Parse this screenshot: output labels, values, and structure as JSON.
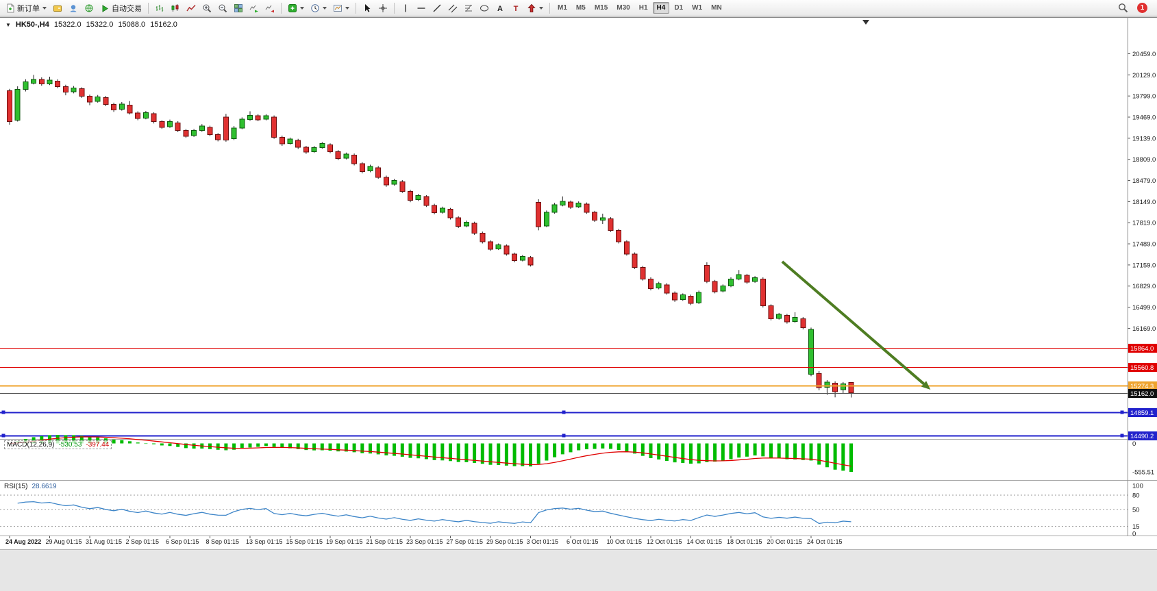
{
  "toolbar": {
    "new_order_label": "新订单",
    "auto_trading_label": "自动交易",
    "timeframes": [
      "M1",
      "M5",
      "M15",
      "M30",
      "H1",
      "H4",
      "D1",
      "W1",
      "MN"
    ],
    "active_timeframe": "H4",
    "notification_count": "1",
    "icons": [
      "new-order",
      "wallet",
      "headset",
      "globe",
      "auto-trading-play",
      "bar-chart",
      "candlestick-chart",
      "line-chart",
      "zoom-in",
      "zoom-out",
      "tile-windows",
      "auto-scroll",
      "chart-shift",
      "add-indicator",
      "periods-clock",
      "templates",
      "cursor",
      "crosshair",
      "vertical-line",
      "horizontal-line",
      "trendline",
      "equidistant-channel",
      "fibonacci",
      "ellipse",
      "text",
      "text-label",
      "arrows",
      "search",
      "notification"
    ]
  },
  "chart": {
    "symbol": "HK50-,H4",
    "ohlc": {
      "open": "15322.0",
      "high": "15322.0",
      "low": "15088.0",
      "close": "15162.0"
    }
  },
  "chart_data": {
    "type": "candlestick",
    "symbol": "HK50-",
    "timeframe": "H4",
    "ylim": [
      14440,
      21010
    ],
    "y_ticks": [
      20459,
      20129,
      19799,
      19469,
      19139,
      18809,
      18479,
      18149,
      17819,
      17489,
      17159,
      16829,
      16499,
      16169
    ],
    "x_labels": [
      "24 Aug 2022",
      "29 Aug 01:15",
      "31 Aug 01:15",
      "2 Sep 01:15",
      "6 Sep 01:15",
      "8 Sep 01:15",
      "13 Sep 01:15",
      "15 Sep 01:15",
      "19 Sep 01:15",
      "21 Sep 01:15",
      "23 Sep 01:15",
      "27 Sep 01:15",
      "29 Sep 01:15",
      "3 Oct 01:15",
      "6 Oct 01:15",
      "10 Oct 01:15",
      "12 Oct 01:15",
      "14 Oct 01:15",
      "18 Oct 01:15",
      "20 Oct 01:15",
      "24 Oct 01:15"
    ],
    "bars_per_label": 5,
    "candles": [
      [
        "r",
        19880,
        19400,
        19910,
        19350
      ],
      [
        "g",
        19900,
        19420,
        19950,
        19400
      ],
      [
        "g",
        20020,
        19900,
        20060,
        19870
      ],
      [
        "g",
        20060,
        20000,
        20129,
        19980
      ],
      [
        "r",
        20060,
        19990,
        20090,
        19960
      ],
      [
        "g",
        20045,
        19990,
        20100,
        19970
      ],
      [
        "r",
        20030,
        19945,
        20060,
        19920
      ],
      [
        "r",
        19945,
        19860,
        19975,
        19810
      ],
      [
        "g",
        19925,
        19865,
        19955,
        19840
      ],
      [
        "r",
        19915,
        19795,
        19935,
        19770
      ],
      [
        "r",
        19795,
        19705,
        19820,
        19655
      ],
      [
        "g",
        19785,
        19715,
        19815,
        19695
      ],
      [
        "r",
        19775,
        19665,
        19800,
        19640
      ],
      [
        "r",
        19665,
        19580,
        19695,
        19550
      ],
      [
        "g",
        19675,
        19590,
        19705,
        19570
      ],
      [
        "r",
        19655,
        19535,
        19720,
        19510
      ],
      [
        "r",
        19535,
        19448,
        19560,
        19420
      ],
      [
        "g",
        19538,
        19455,
        19565,
        19435
      ],
      [
        "r",
        19520,
        19398,
        19545,
        19370
      ],
      [
        "r",
        19398,
        19310,
        19420,
        19285
      ],
      [
        "g",
        19402,
        19320,
        19430,
        19300
      ],
      [
        "r",
        19380,
        19262,
        19405,
        19235
      ],
      [
        "r",
        19262,
        19172,
        19285,
        19145
      ],
      [
        "g",
        19258,
        19180,
        19285,
        19160
      ],
      [
        "g",
        19332,
        19258,
        19360,
        19240
      ],
      [
        "r",
        19310,
        19198,
        19335,
        19170
      ],
      [
        "r",
        19198,
        19118,
        19220,
        19090
      ],
      [
        "r",
        19470,
        19112,
        19520,
        19085
      ],
      [
        "g",
        19298,
        19130,
        19330,
        19110
      ],
      [
        "g",
        19438,
        19298,
        19465,
        19280
      ],
      [
        "g",
        19498,
        19430,
        19560,
        19410
      ],
      [
        "r",
        19490,
        19428,
        19515,
        19405
      ],
      [
        "g",
        19488,
        19436,
        19515,
        19418
      ],
      [
        "r",
        19470,
        19155,
        19495,
        19130
      ],
      [
        "r",
        19155,
        19050,
        19180,
        19020
      ],
      [
        "g",
        19125,
        19058,
        19150,
        19040
      ],
      [
        "r",
        19108,
        18998,
        19130,
        18970
      ],
      [
        "r",
        18998,
        18922,
        19020,
        18895
      ],
      [
        "g",
        18995,
        18930,
        19020,
        18910
      ],
      [
        "g",
        19055,
        18995,
        19080,
        18975
      ],
      [
        "r",
        19035,
        18930,
        19060,
        18905
      ],
      [
        "r",
        18930,
        18820,
        18955,
        18795
      ],
      [
        "g",
        18890,
        18828,
        18915,
        18808
      ],
      [
        "r",
        18875,
        18740,
        18900,
        18715
      ],
      [
        "r",
        18740,
        18620,
        18765,
        18590
      ],
      [
        "g",
        18700,
        18628,
        18725,
        18608
      ],
      [
        "r",
        18680,
        18530,
        18705,
        18505
      ],
      [
        "r",
        18530,
        18410,
        18555,
        18380
      ],
      [
        "g",
        18480,
        18418,
        18505,
        18398
      ],
      [
        "r",
        18460,
        18310,
        18485,
        18285
      ],
      [
        "r",
        18310,
        18170,
        18335,
        18140
      ],
      [
        "g",
        18245,
        18178,
        18270,
        18158
      ],
      [
        "r",
        18228,
        18090,
        18250,
        18065
      ],
      [
        "r",
        18090,
        17975,
        18115,
        17950
      ],
      [
        "g",
        18045,
        17982,
        18070,
        17962
      ],
      [
        "r",
        18028,
        17895,
        18050,
        17870
      ],
      [
        "r",
        17895,
        17760,
        17920,
        17735
      ],
      [
        "g",
        17828,
        17768,
        17852,
        17748
      ],
      [
        "r",
        17810,
        17655,
        17835,
        17630
      ],
      [
        "r",
        17655,
        17520,
        17680,
        17495
      ],
      [
        "r",
        17520,
        17405,
        17545,
        17380
      ],
      [
        "g",
        17472,
        17412,
        17495,
        17392
      ],
      [
        "r",
        17455,
        17330,
        17480,
        17305
      ],
      [
        "r",
        17330,
        17228,
        17352,
        17200
      ],
      [
        "g",
        17292,
        17235,
        17315,
        17215
      ],
      [
        "r",
        17275,
        17160,
        17298,
        17135
      ],
      [
        "r",
        18135,
        17755,
        18185,
        17700
      ],
      [
        "g",
        17980,
        17770,
        18010,
        17750
      ],
      [
        "g",
        18100,
        17980,
        18130,
        17960
      ],
      [
        "g",
        18152,
        18095,
        18230,
        18075
      ],
      [
        "r",
        18140,
        18060,
        18165,
        18035
      ],
      [
        "g",
        18128,
        18068,
        18152,
        18048
      ],
      [
        "r",
        18110,
        17982,
        18135,
        17958
      ],
      [
        "r",
        17982,
        17858,
        18005,
        17832
      ],
      [
        "g",
        17895,
        17860,
        17960,
        17800
      ],
      [
        "r",
        17880,
        17700,
        17905,
        17675
      ],
      [
        "r",
        17700,
        17520,
        17725,
        17495
      ],
      [
        "r",
        17520,
        17330,
        17545,
        17305
      ],
      [
        "r",
        17330,
        17120,
        17355,
        17095
      ],
      [
        "r",
        17120,
        16940,
        17145,
        16915
      ],
      [
        "r",
        16940,
        16790,
        16965,
        16762
      ],
      [
        "g",
        16870,
        16798,
        16895,
        16778
      ],
      [
        "r",
        16850,
        16720,
        16875,
        16695
      ],
      [
        "r",
        16720,
        16610,
        16745,
        16582
      ],
      [
        "g",
        16690,
        16618,
        16715,
        16598
      ],
      [
        "r",
        16670,
        16560,
        16695,
        16532
      ],
      [
        "g",
        16730,
        16568,
        16758,
        16548
      ],
      [
        "r",
        17150,
        16900,
        17200,
        16875
      ],
      [
        "r",
        16900,
        16740,
        16925,
        16715
      ],
      [
        "g",
        16830,
        16750,
        16855,
        16730
      ],
      [
        "g",
        16940,
        16830,
        16965,
        16812
      ],
      [
        "g",
        17010,
        16940,
        17080,
        16920
      ],
      [
        "r",
        16995,
        16890,
        17020,
        16862
      ],
      [
        "g",
        16960,
        16900,
        16985,
        16880
      ],
      [
        "r",
        16940,
        16520,
        16965,
        16495
      ],
      [
        "r",
        16520,
        16320,
        16545,
        16292
      ],
      [
        "g",
        16385,
        16325,
        16410,
        16305
      ],
      [
        "r",
        16370,
        16270,
        16395,
        16242
      ],
      [
        "g",
        16340,
        16275,
        16420,
        16255
      ],
      [
        "r",
        16320,
        16180,
        16345,
        16152
      ],
      [
        "g",
        16150,
        15450,
        16180,
        15420
      ],
      [
        "r",
        15460,
        15240,
        15500,
        15200
      ],
      [
        "g",
        15330,
        15250,
        15360,
        15130
      ],
      [
        "r",
        15310,
        15180,
        15340,
        15090
      ],
      [
        "g",
        15300,
        15210,
        15330,
        15150
      ],
      [
        "r",
        15322,
        15162,
        15322,
        15088
      ]
    ],
    "hlines": [
      {
        "price": 15864.0,
        "label": "15864.0",
        "color": "#e00000",
        "width": 1
      },
      {
        "price": 15560.8,
        "label": "15560.8",
        "color": "#e00000",
        "width": 1
      },
      {
        "price": 15274.3,
        "label": "15274.3",
        "color": "#efa32e",
        "width": 2
      },
      {
        "price": 15162.0,
        "label": "15162.0",
        "color": "#555555",
        "width": 1,
        "label_bg": "#111111",
        "role": "current-price"
      },
      {
        "price": 14859.1,
        "label": "14859.1",
        "color": "#2222cc",
        "width": 2,
        "handles": true
      },
      {
        "price": 14490.2,
        "label": "14490.2",
        "color": "#2222cc",
        "width": 2,
        "handles": true
      }
    ],
    "trend_arrow": {
      "bar1": 96.4,
      "price1": 17211,
      "bar2": 114.9,
      "price2": 15211,
      "color": "#4e7d22"
    },
    "indicators": {
      "macd": {
        "name": "MACD(12,26,9)",
        "value": "-530.53",
        "signal_value": "-397.44",
        "fast": 12,
        "slow": 26,
        "signal_period": 9,
        "axis": [
          "0",
          "-555.51"
        ]
      },
      "rsi": {
        "name": "RSI(15)",
        "value": "28.6619",
        "period": 15,
        "levels": [
          100,
          80,
          50,
          15,
          0
        ]
      }
    },
    "colors": {
      "up": "#2fbf2f",
      "down": "#e03131",
      "wick": "#222222",
      "macd_hist": "#00bb00",
      "macd_signal": "#e00000",
      "rsi_line": "#3d85c8",
      "arrow": "#4e7d22"
    }
  }
}
